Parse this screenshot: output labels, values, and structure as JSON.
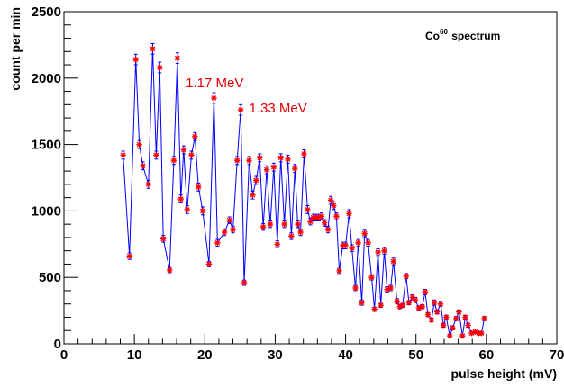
{
  "chart_data": {
    "type": "line",
    "title": "",
    "xlabel": "pulse height (mV)",
    "ylabel": "count per min",
    "xlim": [
      0,
      70
    ],
    "ylim": [
      0,
      2500
    ],
    "x_major_ticks": [
      0,
      10,
      20,
      30,
      40,
      50,
      60,
      70
    ],
    "y_major_ticks": [
      0,
      500,
      1000,
      1500,
      2000,
      2500
    ],
    "grid": false,
    "legend": {
      "position": "top-right",
      "label_base": "Co",
      "label_sup": "60",
      "label_rest": " spectrum"
    },
    "line_color": "#0000ff",
    "marker_color": "#ff0000",
    "errorbar_color": "#0000ff",
    "annotations": [
      {
        "text": "1.17 MeV",
        "x": 17.3,
        "y": 1930
      },
      {
        "text": "1.33 MeV",
        "x": 26.3,
        "y": 1740
      }
    ],
    "series": [
      {
        "points": [
          [
            8.4,
            1420,
            30
          ],
          [
            9.3,
            660,
            25
          ],
          [
            10.2,
            2140,
            40
          ],
          [
            10.7,
            1500,
            30
          ],
          [
            11.2,
            1340,
            30
          ],
          [
            12.0,
            1200,
            30
          ],
          [
            12.6,
            2220,
            40
          ],
          [
            13.1,
            1420,
            30
          ],
          [
            13.6,
            2080,
            40
          ],
          [
            14.1,
            790,
            25
          ],
          [
            15.0,
            555,
            20
          ],
          [
            15.6,
            1380,
            30
          ],
          [
            16.1,
            2150,
            40
          ],
          [
            16.6,
            1090,
            30
          ],
          [
            17.0,
            1460,
            30
          ],
          [
            17.5,
            1010,
            30
          ],
          [
            18.1,
            1420,
            30
          ],
          [
            18.6,
            1560,
            30
          ],
          [
            19.1,
            1180,
            30
          ],
          [
            19.7,
            1000,
            30
          ],
          [
            20.6,
            600,
            20
          ],
          [
            21.3,
            1850,
            40
          ],
          [
            21.8,
            760,
            25
          ],
          [
            22.8,
            840,
            25
          ],
          [
            23.5,
            930,
            25
          ],
          [
            24.0,
            860,
            25
          ],
          [
            24.6,
            1380,
            30
          ],
          [
            25.1,
            1760,
            40
          ],
          [
            25.6,
            460,
            20
          ],
          [
            26.3,
            1380,
            30
          ],
          [
            26.8,
            1120,
            30
          ],
          [
            27.3,
            1230,
            30
          ],
          [
            27.8,
            1400,
            30
          ],
          [
            28.3,
            880,
            25
          ],
          [
            28.8,
            1310,
            30
          ],
          [
            29.3,
            900,
            25
          ],
          [
            29.8,
            1330,
            30
          ],
          [
            30.3,
            750,
            25
          ],
          [
            30.8,
            1400,
            30
          ],
          [
            31.3,
            900,
            25
          ],
          [
            31.8,
            1390,
            30
          ],
          [
            32.3,
            810,
            25
          ],
          [
            32.8,
            1320,
            30
          ],
          [
            33.2,
            900,
            25
          ],
          [
            33.6,
            840,
            25
          ],
          [
            34.1,
            1430,
            30
          ],
          [
            34.6,
            1010,
            30
          ],
          [
            35.0,
            920,
            25
          ],
          [
            35.4,
            950,
            25
          ],
          [
            35.8,
            950,
            25
          ],
          [
            36.2,
            950,
            25
          ],
          [
            36.6,
            960,
            25
          ],
          [
            37.0,
            910,
            25
          ],
          [
            37.5,
            860,
            25
          ],
          [
            37.9,
            1080,
            30
          ],
          [
            38.3,
            1040,
            30
          ],
          [
            38.7,
            960,
            25
          ],
          [
            39.1,
            550,
            20
          ],
          [
            39.6,
            740,
            25
          ],
          [
            40.0,
            740,
            25
          ],
          [
            40.5,
            980,
            30
          ],
          [
            40.9,
            720,
            25
          ],
          [
            41.4,
            420,
            20
          ],
          [
            41.8,
            760,
            25
          ],
          [
            42.3,
            310,
            20
          ],
          [
            42.7,
            830,
            25
          ],
          [
            43.2,
            760,
            25
          ],
          [
            43.7,
            500,
            20
          ],
          [
            44.1,
            260,
            15
          ],
          [
            44.6,
            690,
            25
          ],
          [
            45.0,
            290,
            15
          ],
          [
            45.5,
            700,
            25
          ],
          [
            45.9,
            410,
            20
          ],
          [
            46.4,
            420,
            20
          ],
          [
            46.8,
            620,
            25
          ],
          [
            47.3,
            320,
            20
          ],
          [
            47.7,
            280,
            15
          ],
          [
            48.1,
            290,
            15
          ],
          [
            48.6,
            510,
            20
          ],
          [
            49.0,
            310,
            15
          ],
          [
            49.5,
            350,
            20
          ],
          [
            49.9,
            330,
            20
          ],
          [
            50.4,
            270,
            15
          ],
          [
            50.9,
            280,
            15
          ],
          [
            51.3,
            390,
            20
          ],
          [
            51.7,
            220,
            15
          ],
          [
            52.2,
            180,
            15
          ],
          [
            52.6,
            310,
            20
          ],
          [
            53.0,
            240,
            15
          ],
          [
            53.5,
            300,
            20
          ],
          [
            53.9,
            140,
            15
          ],
          [
            54.3,
            200,
            15
          ],
          [
            54.8,
            60,
            10
          ],
          [
            55.2,
            120,
            15
          ],
          [
            55.7,
            190,
            15
          ],
          [
            56.1,
            240,
            15
          ],
          [
            56.6,
            60,
            10
          ],
          [
            57.0,
            200,
            15
          ],
          [
            57.4,
            140,
            15
          ],
          [
            57.9,
            80,
            10
          ],
          [
            58.4,
            90,
            10
          ],
          [
            58.9,
            80,
            10
          ],
          [
            59.3,
            80,
            10
          ],
          [
            59.7,
            190,
            15
          ]
        ]
      }
    ]
  }
}
